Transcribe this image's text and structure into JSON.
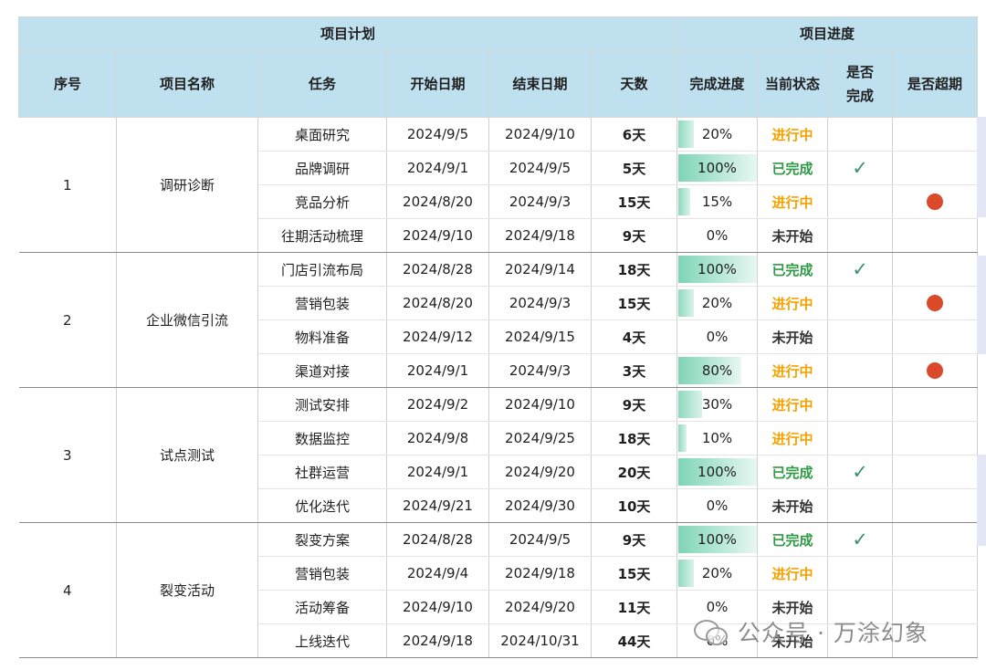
{
  "header": {
    "group_plan": "项目计划",
    "group_progress": "项目进度",
    "col_index": "序号",
    "col_project": "项目名称",
    "col_task": "任务",
    "col_start": "开始日期",
    "col_end": "结束日期",
    "col_days": "天数",
    "col_progress": "完成进度",
    "col_status": "当前状态",
    "col_done_line1": "是否",
    "col_done_line2": "完成",
    "col_overdue": "是否超期"
  },
  "groups": [
    {
      "index": "1",
      "name": "调研诊断"
    },
    {
      "index": "2",
      "name": "企业微信引流"
    },
    {
      "index": "3",
      "name": "试点测试"
    },
    {
      "index": "4",
      "name": "裂变活动"
    }
  ],
  "rows": [
    {
      "task": "桌面研究",
      "start": "2024/9/5",
      "end": "2024/9/10",
      "days": "6天",
      "progress": 0.2,
      "progress_text": "20%",
      "status": "进行中",
      "status_type": "prog",
      "done": false,
      "overdue": false
    },
    {
      "task": "品牌调研",
      "start": "2024/9/1",
      "end": "2024/9/5",
      "days": "5天",
      "progress": 1.0,
      "progress_text": "100%",
      "status": "已完成",
      "status_type": "done",
      "done": true,
      "overdue": false
    },
    {
      "task": "竞品分析",
      "start": "2024/8/20",
      "end": "2024/9/3",
      "days": "15天",
      "progress": 0.15,
      "progress_text": "15%",
      "status": "进行中",
      "status_type": "prog",
      "done": false,
      "overdue": true
    },
    {
      "task": "往期活动梳理",
      "start": "2024/9/10",
      "end": "2024/9/18",
      "days": "9天",
      "progress": 0,
      "progress_text": "0%",
      "status": "未开始",
      "status_type": "none",
      "done": false,
      "overdue": false
    },
    {
      "task": "门店引流布局",
      "start": "2024/8/28",
      "end": "2024/9/14",
      "days": "18天",
      "progress": 1.0,
      "progress_text": "100%",
      "status": "已完成",
      "status_type": "done",
      "done": true,
      "overdue": false
    },
    {
      "task": "营销包装",
      "start": "2024/8/20",
      "end": "2024/9/3",
      "days": "15天",
      "progress": 0.2,
      "progress_text": "20%",
      "status": "进行中",
      "status_type": "prog",
      "done": false,
      "overdue": true
    },
    {
      "task": "物料准备",
      "start": "2024/9/12",
      "end": "2024/9/15",
      "days": "4天",
      "progress": 0,
      "progress_text": "0%",
      "status": "未开始",
      "status_type": "none",
      "done": false,
      "overdue": false
    },
    {
      "task": "渠道对接",
      "start": "2024/9/1",
      "end": "2024/9/3",
      "days": "3天",
      "progress": 0.8,
      "progress_text": "80%",
      "status": "进行中",
      "status_type": "prog",
      "done": false,
      "overdue": true
    },
    {
      "task": "测试安排",
      "start": "2024/9/2",
      "end": "2024/9/10",
      "days": "9天",
      "progress": 0.3,
      "progress_text": "30%",
      "status": "进行中",
      "status_type": "prog",
      "done": false,
      "overdue": false
    },
    {
      "task": "数据监控",
      "start": "2024/9/8",
      "end": "2024/9/25",
      "days": "18天",
      "progress": 0.1,
      "progress_text": "10%",
      "status": "进行中",
      "status_type": "prog",
      "done": false,
      "overdue": false
    },
    {
      "task": "社群运营",
      "start": "2024/9/1",
      "end": "2024/9/20",
      "days": "20天",
      "progress": 1.0,
      "progress_text": "100%",
      "status": "已完成",
      "status_type": "done",
      "done": true,
      "overdue": false
    },
    {
      "task": "优化迭代",
      "start": "2024/9/21",
      "end": "2024/9/30",
      "days": "10天",
      "progress": 0,
      "progress_text": "0%",
      "status": "未开始",
      "status_type": "none",
      "done": false,
      "overdue": false
    },
    {
      "task": "裂变方案",
      "start": "2024/8/28",
      "end": "2024/9/5",
      "days": "9天",
      "progress": 1.0,
      "progress_text": "100%",
      "status": "已完成",
      "status_type": "done",
      "done": true,
      "overdue": false
    },
    {
      "task": "营销包装",
      "start": "2024/9/4",
      "end": "2024/9/18",
      "days": "15天",
      "progress": 0.2,
      "progress_text": "20%",
      "status": "进行中",
      "status_type": "prog",
      "done": false,
      "overdue": false
    },
    {
      "task": "活动筹备",
      "start": "2024/9/10",
      "end": "2024/9/20",
      "days": "11天",
      "progress": 0,
      "progress_text": "0%",
      "status": "未开始",
      "status_type": "none",
      "done": false,
      "overdue": false
    },
    {
      "task": "上线迭代",
      "start": "2024/9/18",
      "end": "2024/10/31",
      "days": "44天",
      "progress": 0,
      "progress_text": "0%",
      "status": "未开始",
      "status_type": "none",
      "done": false,
      "overdue": false
    }
  ],
  "icons": {
    "done_mark": "check-icon",
    "overdue_mark": "red-dot-icon"
  },
  "colors": {
    "header_bg": "#bfe0ef",
    "status_done": "#2e9a44",
    "status_in_progress": "#f5a100",
    "overdue_dot": "#d9492a",
    "check": "#3e8f78"
  },
  "watermark": {
    "text": "公众号 · 万涂幻象"
  }
}
